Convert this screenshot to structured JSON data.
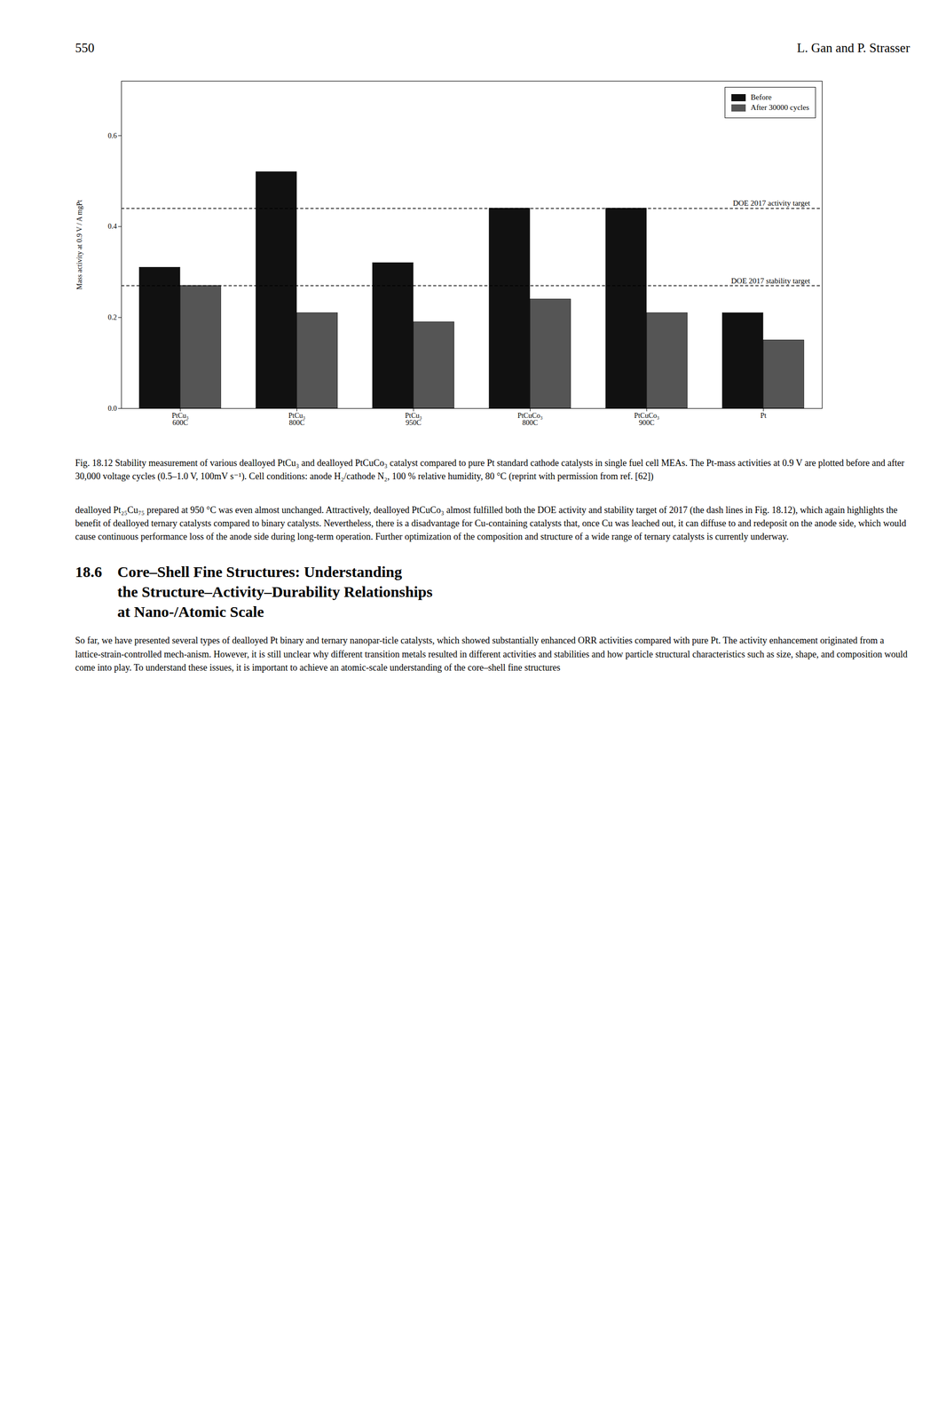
{
  "header_left": "550",
  "header_right": "L. Gan and P. Strasser",
  "chart_data": {
    "type": "bar",
    "categories": [
      "PtCu₃\n600C",
      "PtCu₃\n800C",
      "PtCu₃\n950C",
      "PtCuCo₃\n800C",
      "PtCuCo₃\n900C",
      "Pt"
    ],
    "series": [
      {
        "name": "Before",
        "color": "#111111",
        "values": [
          0.31,
          0.52,
          0.32,
          0.44,
          0.44,
          0.21
        ]
      },
      {
        "name": "After 30000 cycles",
        "color": "#555555",
        "values": [
          0.27,
          0.21,
          0.19,
          0.24,
          0.21,
          0.15
        ]
      }
    ],
    "ylabel": "Mass activity at 0.9 V / A mgPt",
    "ylim": [
      0.0,
      0.72
    ],
    "yticks": [
      {
        "value": 0.0,
        "label": "0.0"
      },
      0.2,
      0.4,
      0.6
    ],
    "annotations": [
      {
        "y": 0.44,
        "text": "DOE 2017 activity target",
        "line_style": "dashed"
      },
      {
        "y": 0.27,
        "text": "DOE 2017 stability target",
        "line_style": "dashed"
      }
    ],
    "legend": "upper right",
    "grid": false
  },
  "caption": "Fig. 18.12 Stability measurement of various dealloyed PtCu₃ and dealloyed PtCuCo₃ catalyst compared to pure Pt standard cathode catalysts in single fuel cell MEAs. The Pt-mass activities at 0.9 V are plotted before and after 30,000 voltage cycles (0.5–1.0 V, 100mV s⁻¹). Cell conditions: anode H₂/cathode N₂, 100 % relative humidity, 80 °C (reprint with permission from ref. [62])",
  "body_text1": "dealloyed Pt₂₅Cu₇₅ prepared at 950 °C was even almost unchanged. Attractively, dealloyed PtCuCo₃ almost fulfilled both the DOE activity and stability target of 2017 (the dash lines in Fig. 18.12), which again highlights the benefit of dealloyed ternary catalysts compared to binary catalysts. Nevertheless, there is a disadvantage for Cu-containing catalysts that, once Cu was leached out, it can diffuse to and redeposit on the anode side, which would cause continuous performance loss of the anode side during long-term operation. Further optimization of the composition and structure of a wide range of ternary catalysts is currently underway.",
  "section_number": "18.6",
  "section_title": [
    "Core–Shell Fine Structures: Understanding",
    "the Structure–Activity–Durability Relationships",
    "at Nano-/Atomic Scale"
  ],
  "body_text2": "So far, we have presented several types of dealloyed Pt binary and ternary nanopar-ticle catalysts, which showed substantially enhanced ORR activities compared with pure Pt. The activity enhancement originated from a lattice-strain-controlled mech-anism. However, it is still unclear why different transition metals resulted in different activities and stabilities and how particle structural characteristics such as size, shape, and composition would come into play. To understand these issues, it is important to achieve an atomic-scale understanding of the core–shell fine structures"
}
